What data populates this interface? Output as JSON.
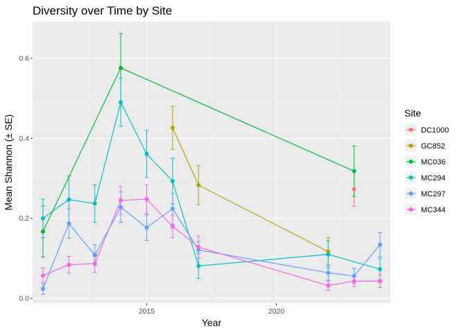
{
  "chart_data": {
    "type": "line",
    "title": "Diversity over Time by Site",
    "xlabel": "Year",
    "ylabel": "Mean Shannon (± SE)",
    "xlim": [
      2010.6,
      2024.4
    ],
    "ylim": [
      -0.012,
      0.692
    ],
    "xticks": [
      2015,
      2020
    ],
    "yticks": [
      0.0,
      0.2,
      0.4,
      0.6
    ],
    "ytick_labels": [
      "0.0",
      "0.2",
      "0.4",
      "0.6"
    ],
    "xtick_labels": [
      "2015",
      "2020"
    ],
    "grid": true,
    "legend": {
      "title": "Site",
      "placement": "right"
    },
    "series": [
      {
        "name": "DC1000",
        "color": "#F8766D",
        "points": [
          {
            "x": 2023,
            "y": 0.273,
            "lo": 0.23,
            "hi": 0.316
          }
        ]
      },
      {
        "name": "GC852",
        "color": "#B79F00",
        "points": [
          {
            "x": 2016,
            "y": 0.426,
            "lo": 0.372,
            "hi": 0.48
          },
          {
            "x": 2017,
            "y": 0.283,
            "lo": 0.234,
            "hi": 0.332
          },
          {
            "x": 2022,
            "y": 0.117,
            "lo": 0.082,
            "hi": 0.152
          }
        ]
      },
      {
        "name": "MC036",
        "color": "#00BA38",
        "points": [
          {
            "x": 2011,
            "y": 0.167,
            "lo": 0.103,
            "hi": 0.231
          },
          {
            "x": 2014,
            "y": 0.576,
            "lo": 0.49,
            "hi": 0.662
          },
          {
            "x": 2023,
            "y": 0.318,
            "lo": 0.255,
            "hi": 0.381
          }
        ]
      },
      {
        "name": "MC294",
        "color": "#00BFC4",
        "points": [
          {
            "x": 2011,
            "y": 0.2,
            "lo": 0.152,
            "hi": 0.248
          },
          {
            "x": 2012,
            "y": 0.247,
            "lo": 0.188,
            "hi": 0.306
          },
          {
            "x": 2013,
            "y": 0.237,
            "lo": 0.19,
            "hi": 0.284
          },
          {
            "x": 2014,
            "y": 0.49,
            "lo": 0.43,
            "hi": 0.55
          },
          {
            "x": 2015,
            "y": 0.361,
            "lo": 0.302,
            "hi": 0.42
          },
          {
            "x": 2016,
            "y": 0.293,
            "lo": 0.236,
            "hi": 0.35
          },
          {
            "x": 2017,
            "y": 0.081,
            "lo": 0.05,
            "hi": 0.112
          },
          {
            "x": 2022,
            "y": 0.11,
            "lo": 0.076,
            "hi": 0.144
          },
          {
            "x": 2024,
            "y": 0.073,
            "lo": 0.046,
            "hi": 0.1
          }
        ]
      },
      {
        "name": "MC297",
        "color": "#619CFF",
        "points": [
          {
            "x": 2011,
            "y": 0.024,
            "lo": 0.01,
            "hi": 0.038
          },
          {
            "x": 2012,
            "y": 0.187,
            "lo": 0.15,
            "hi": 0.224
          },
          {
            "x": 2013,
            "y": 0.108,
            "lo": 0.082,
            "hi": 0.134
          },
          {
            "x": 2014,
            "y": 0.228,
            "lo": 0.19,
            "hi": 0.266
          },
          {
            "x": 2015,
            "y": 0.177,
            "lo": 0.145,
            "hi": 0.209
          },
          {
            "x": 2016,
            "y": 0.224,
            "lo": 0.186,
            "hi": 0.262
          },
          {
            "x": 2017,
            "y": 0.121,
            "lo": 0.1,
            "hi": 0.142
          },
          {
            "x": 2022,
            "y": 0.064,
            "lo": 0.045,
            "hi": 0.083
          },
          {
            "x": 2023,
            "y": 0.056,
            "lo": 0.037,
            "hi": 0.075
          },
          {
            "x": 2024,
            "y": 0.134,
            "lo": 0.104,
            "hi": 0.164
          }
        ]
      },
      {
        "name": "MC344",
        "color": "#F564E3",
        "points": [
          {
            "x": 2011,
            "y": 0.057,
            "lo": 0.038,
            "hi": 0.076
          },
          {
            "x": 2012,
            "y": 0.084,
            "lo": 0.063,
            "hi": 0.105
          },
          {
            "x": 2013,
            "y": 0.087,
            "lo": 0.065,
            "hi": 0.109
          },
          {
            "x": 2014,
            "y": 0.245,
            "lo": 0.21,
            "hi": 0.28
          },
          {
            "x": 2015,
            "y": 0.248,
            "lo": 0.212,
            "hi": 0.284
          },
          {
            "x": 2016,
            "y": 0.18,
            "lo": 0.152,
            "hi": 0.208
          },
          {
            "x": 2017,
            "y": 0.128,
            "lo": 0.1,
            "hi": 0.156
          },
          {
            "x": 2022,
            "y": 0.032,
            "lo": 0.02,
            "hi": 0.044
          },
          {
            "x": 2023,
            "y": 0.043,
            "lo": 0.03,
            "hi": 0.056
          },
          {
            "x": 2024,
            "y": 0.043,
            "lo": 0.027,
            "hi": 0.059
          }
        ]
      }
    ]
  }
}
